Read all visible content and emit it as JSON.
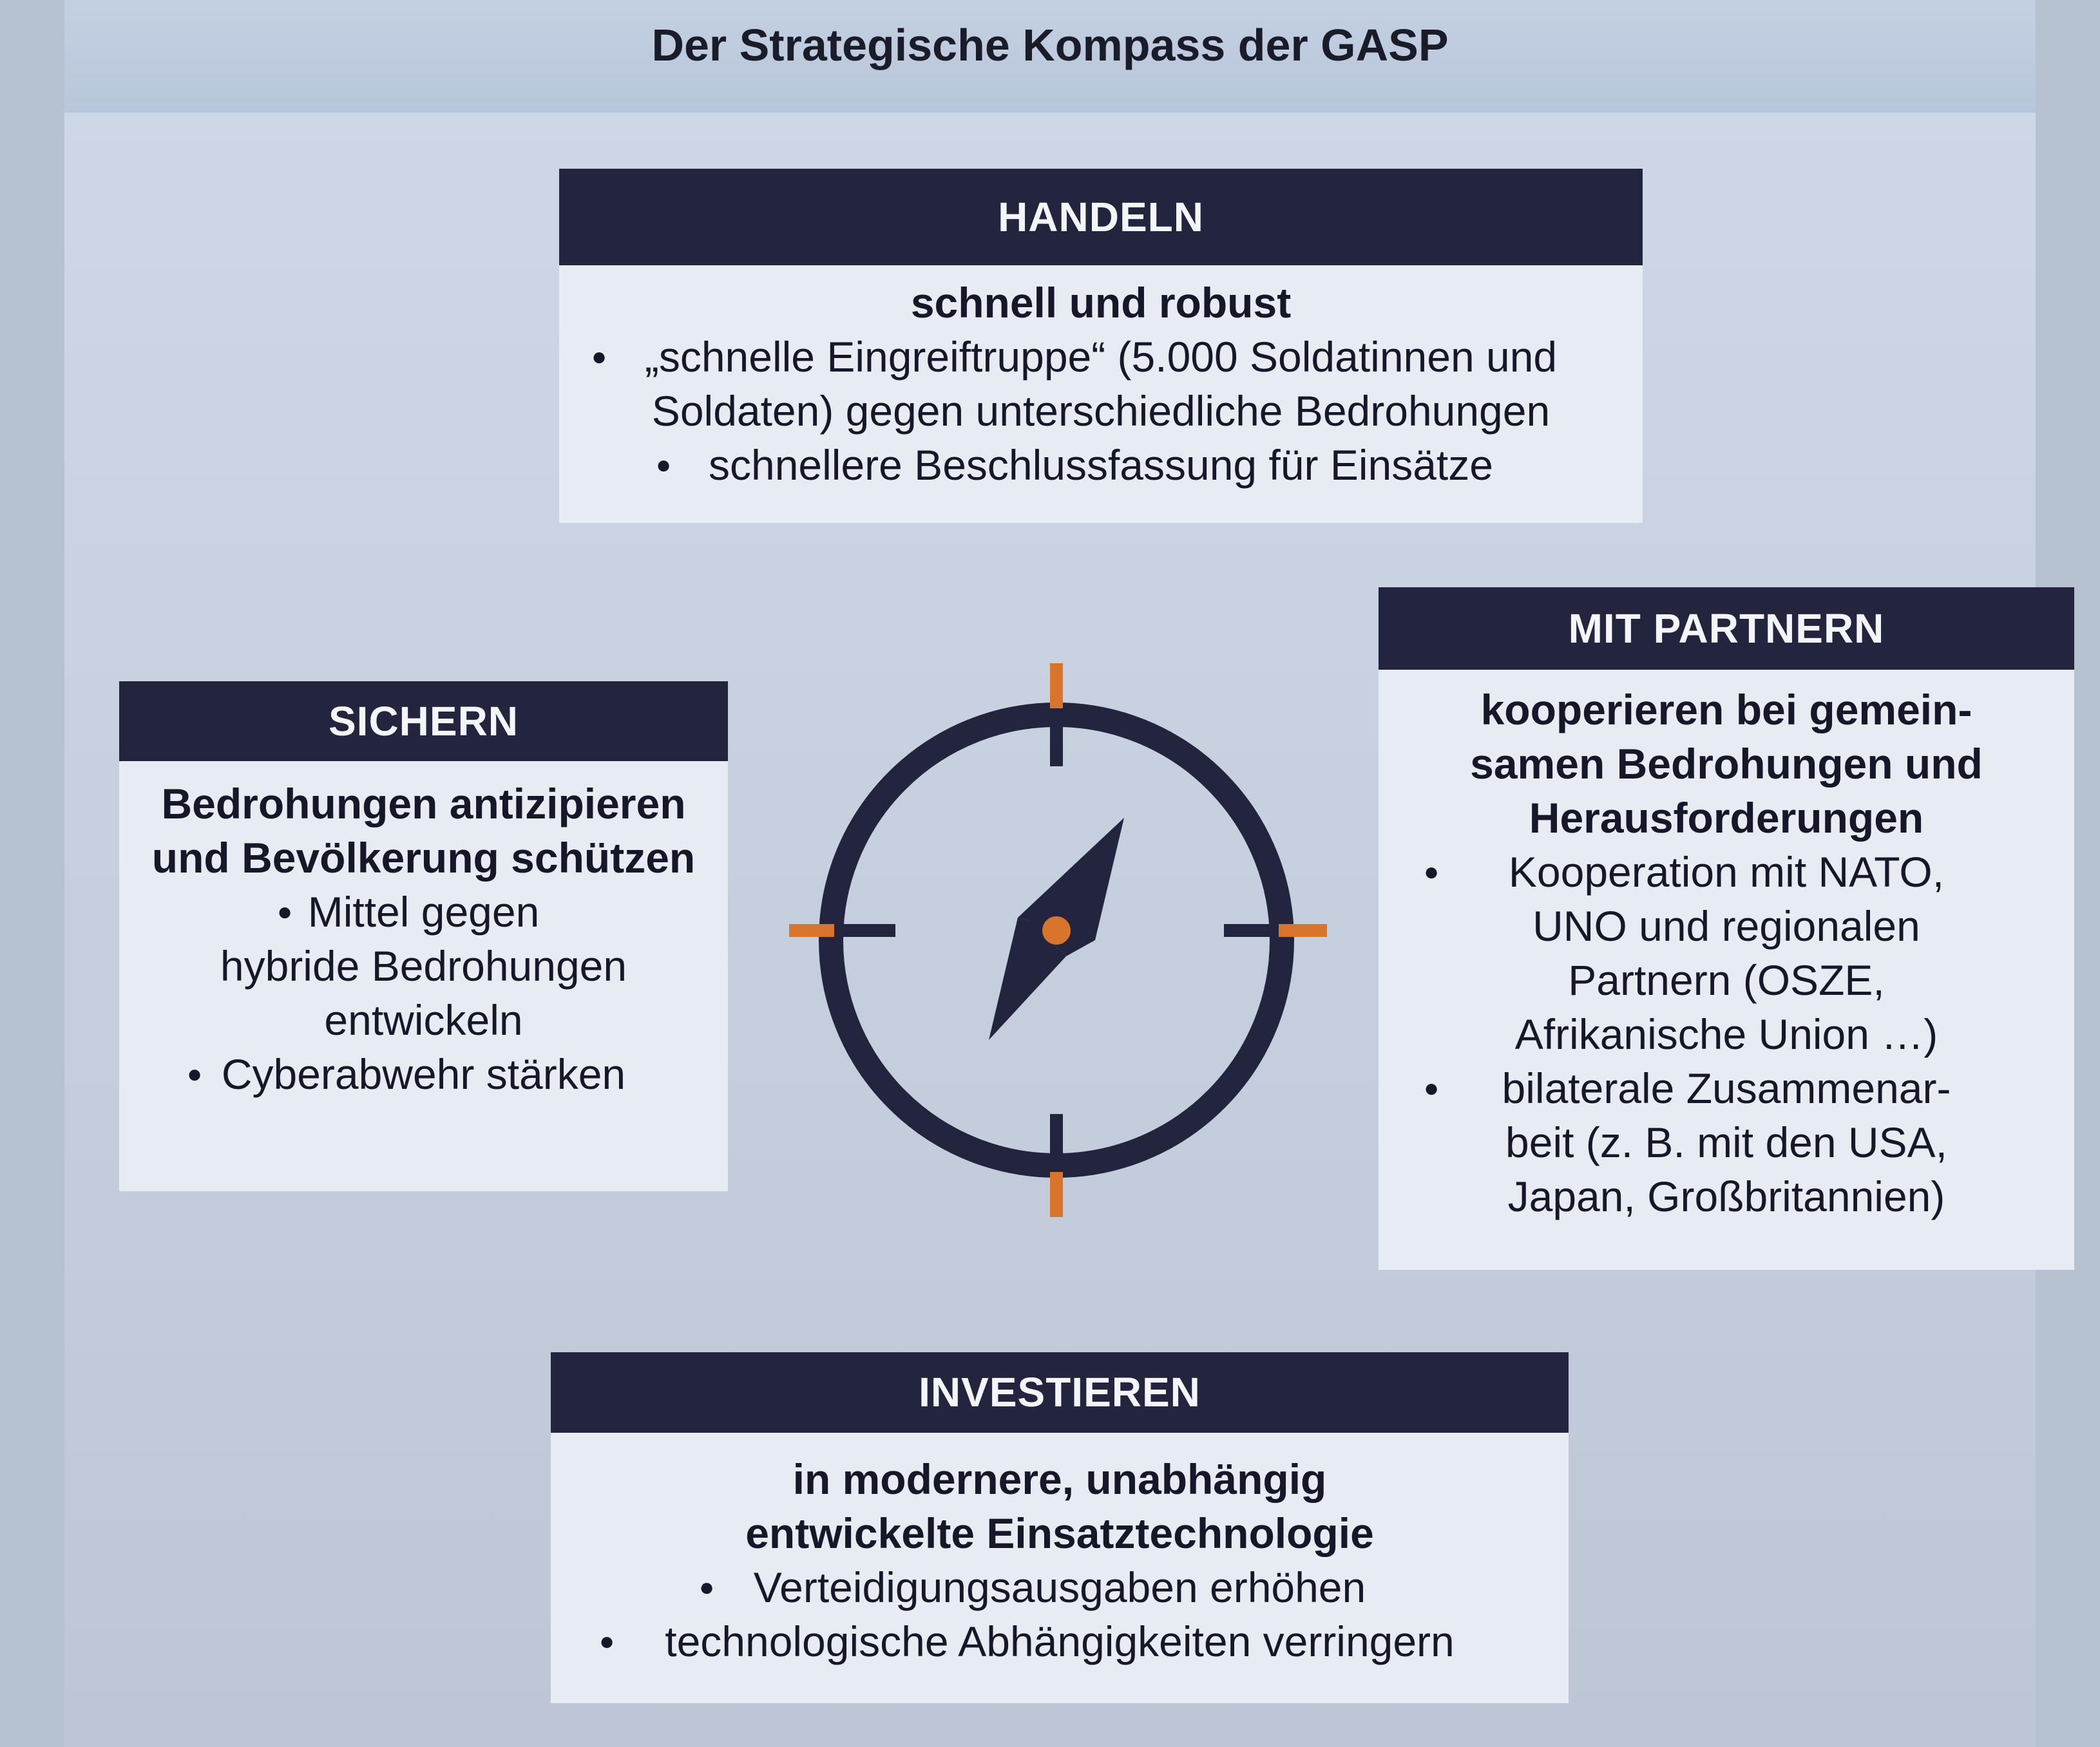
{
  "title": "Der Strategische Kompass der GASP",
  "handeln": {
    "heading": "HANDELN",
    "subtitle": "schnell und robust",
    "items": [
      "„schnelle Eingreiftruppe“ (5.000 Soldatinnen und",
      "Soldaten) gegen unterschiedliche Bedrohungen",
      "schnellere Beschlussfassung für Einsätze"
    ]
  },
  "sichern": {
    "heading": "SICHERN",
    "subtitle": [
      "Bedrohungen antizipieren",
      "und Bevölkerung schützen"
    ],
    "items": [
      "Mittel gegen",
      "hybride Bedrohungen",
      "entwickeln",
      "Cyberabwehr stärken"
    ]
  },
  "partnern": {
    "heading": "MIT PARTNERN",
    "subtitle": [
      "kooperieren bei gemein-",
      "samen Bedrohungen und",
      "Herausforderungen"
    ],
    "items": [
      "Kooperation mit NATO,",
      "UNO und regionalen",
      "Partnern (OSZE,",
      "Afrikanische Union …)",
      "bilaterale Zusammenar-",
      "beit (z. B. mit den USA,",
      "Japan, Großbritannien)"
    ]
  },
  "investieren": {
    "heading": "INVESTIEREN",
    "subtitle": [
      "in modernere, unabhängig",
      "entwickelte Einsatztechnologie"
    ],
    "items": [
      "Verteidigungsausgaben erhöhen",
      "technologische Abhängigkeiten verringern"
    ]
  },
  "compass": {
    "icon": "compass-icon",
    "ring_color": "#23253f",
    "accent_color": "#d9742c"
  }
}
